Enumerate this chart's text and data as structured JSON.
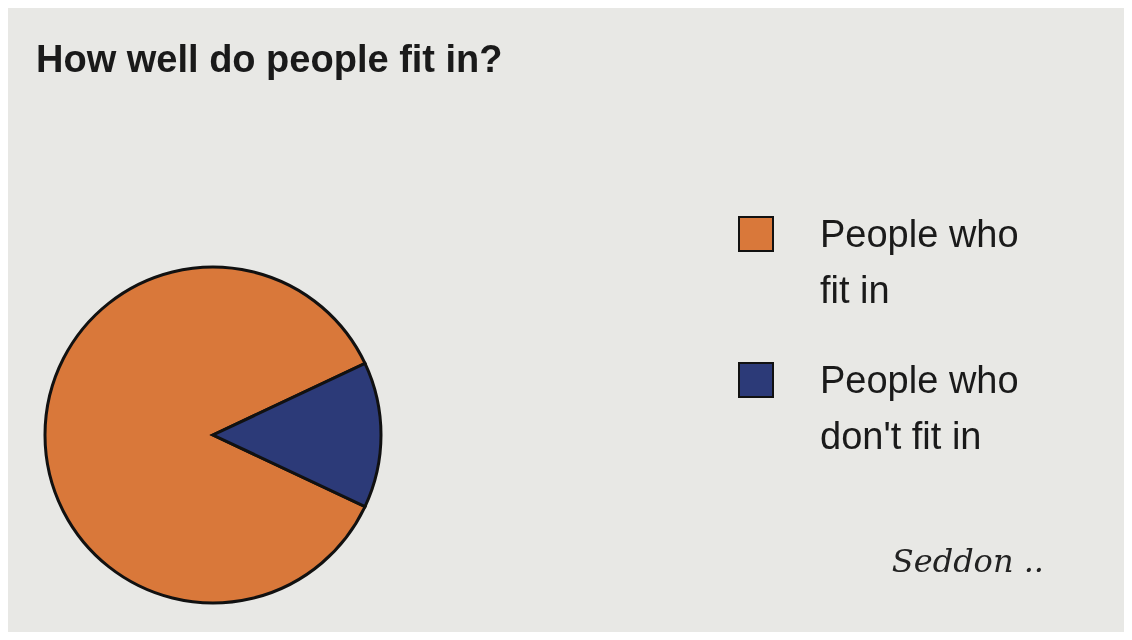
{
  "chart_data": {
    "type": "pie",
    "title": "How well do people fit in?",
    "categories": [
      "People who fit in",
      "People who don't fit in"
    ],
    "values": [
      86,
      14
    ],
    "colors": [
      "#d9783a",
      "#2c3a78"
    ],
    "legend": "right",
    "annotations": [
      "Seddon .."
    ]
  }
}
